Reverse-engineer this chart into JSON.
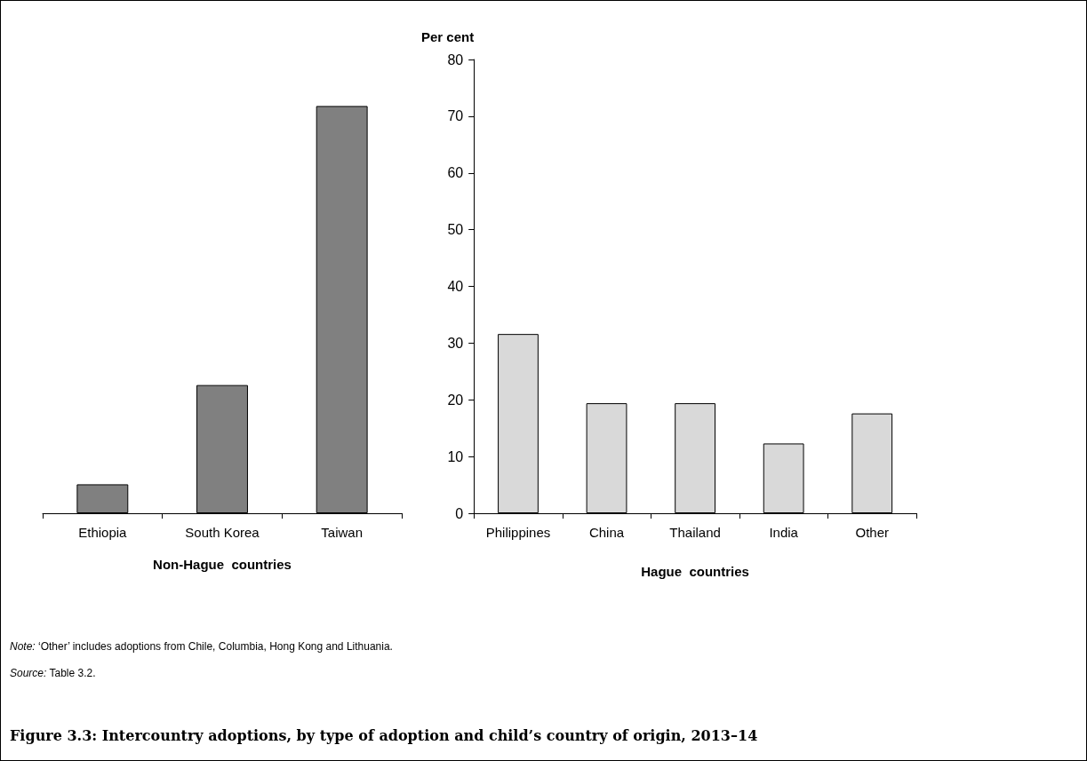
{
  "chart_data": [
    {
      "type": "bar",
      "xlabel": "Non-Hague  countries",
      "categories": [
        "Ethiopia",
        "South Korea",
        "Taiwan"
      ],
      "values": [
        5.1,
        22.6,
        71.8
      ],
      "color": "#808080",
      "ylim": [
        0,
        80
      ],
      "yticks": [
        0,
        10,
        20,
        30,
        40,
        50,
        60,
        70,
        80
      ],
      "tick_labels": "x"
    },
    {
      "type": "bar",
      "ylabel": "Per cent",
      "xlabel": "Hague  countries",
      "categories": [
        "Philippines",
        "China",
        "Thailand",
        "India",
        "Other"
      ],
      "values": [
        31.6,
        19.4,
        19.4,
        12.3,
        17.6
      ],
      "color": "#d9d9d9",
      "ylim": [
        0,
        80
      ],
      "yticks": [
        0,
        10,
        20,
        30,
        40,
        50,
        60,
        70,
        80
      ],
      "title": "Figure 3.3: Intercountry adoptions, by type of adoption and child’s country of origin, 2013–14",
      "annotations": [
        "Note: ‘Other’ includes adoptions from Chile, Columbia, Hong Kong and Lithuania.",
        "Source: Table 3.2."
      ]
    }
  ]
}
